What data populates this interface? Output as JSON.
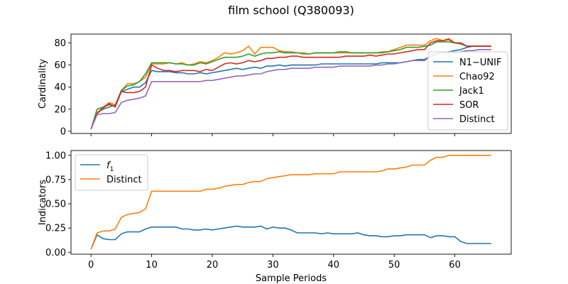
{
  "title": "film school (Q380093)",
  "chart_data": [
    {
      "type": "line",
      "ylabel": "Cardinality",
      "xlim": [
        -3.3,
        69.3
      ],
      "ylim": [
        -2,
        88
      ],
      "yticks": [
        0,
        20,
        40,
        60,
        80
      ],
      "legend_position": "right",
      "x": [
        0,
        1,
        2,
        3,
        4,
        5,
        6,
        7,
        8,
        9,
        10,
        11,
        12,
        13,
        14,
        15,
        16,
        17,
        18,
        19,
        20,
        21,
        22,
        23,
        24,
        25,
        26,
        27,
        28,
        29,
        30,
        31,
        32,
        33,
        34,
        35,
        36,
        37,
        38,
        39,
        40,
        41,
        42,
        43,
        44,
        45,
        46,
        47,
        48,
        49,
        50,
        51,
        52,
        53,
        54,
        55,
        56,
        57,
        58,
        59,
        60,
        61,
        62,
        63,
        64,
        65,
        66
      ],
      "series": [
        {
          "name": "N1−UNIF",
          "color": "#1f77b4",
          "values": [
            2,
            17,
            20,
            22,
            24,
            36,
            38,
            40,
            40,
            44,
            55,
            54,
            54,
            54,
            53,
            53,
            52,
            52,
            53,
            52,
            53,
            54,
            55,
            56,
            57,
            56,
            57,
            58,
            57,
            59,
            59,
            60,
            59,
            60,
            60,
            60,
            60,
            60,
            61,
            61,
            61,
            61,
            61,
            61,
            61,
            61,
            61,
            61,
            62,
            62,
            62,
            62,
            63,
            64,
            65,
            65,
            68,
            70,
            71,
            72,
            73,
            74,
            76,
            77,
            77,
            77,
            77
          ]
        },
        {
          "name": "Chao92",
          "color": "#ff7f0e",
          "values": [
            2,
            17,
            22,
            26,
            24,
            37,
            43,
            43,
            45,
            49,
            61,
            61,
            61,
            62,
            61,
            62,
            60,
            61,
            63,
            62,
            64,
            67,
            71,
            70,
            71,
            73,
            77,
            70,
            76,
            76,
            76,
            73,
            72,
            72,
            71,
            71,
            70,
            71,
            71,
            71,
            71,
            71,
            71,
            71,
            71,
            71,
            71,
            71,
            72,
            72,
            74,
            76,
            78,
            78,
            78,
            78,
            82,
            84,
            82,
            84,
            80,
            79,
            77,
            77,
            77,
            77,
            77
          ]
        },
        {
          "name": "Jack1",
          "color": "#2ca02c",
          "values": [
            2,
            20,
            22,
            24,
            23,
            37,
            41,
            42,
            45,
            52,
            62,
            62,
            62,
            62,
            61,
            61,
            60,
            60,
            62,
            61,
            63,
            65,
            67,
            67,
            67,
            68,
            70,
            68,
            70,
            71,
            71,
            72,
            71,
            71,
            71,
            70,
            70,
            71,
            71,
            71,
            71,
            72,
            72,
            71,
            71,
            71,
            71,
            71,
            71,
            72,
            73,
            74,
            76,
            76,
            76,
            77,
            78,
            81,
            81,
            81,
            80,
            79,
            77,
            77,
            77,
            77,
            77
          ]
        },
        {
          "name": "SOR",
          "color": "#d62728",
          "values": [
            2,
            16,
            21,
            25,
            22,
            36,
            35,
            35,
            36,
            40,
            60,
            57,
            55,
            55,
            54,
            55,
            55,
            55,
            54,
            56,
            55,
            58,
            61,
            62,
            61,
            62,
            64,
            63,
            64,
            66,
            66,
            67,
            67,
            68,
            68,
            67,
            67,
            67,
            67,
            67,
            67,
            67,
            68,
            68,
            68,
            68,
            69,
            68,
            69,
            70,
            70,
            71,
            72,
            73,
            74,
            74,
            80,
            82,
            82,
            83,
            80,
            80,
            77,
            77,
            77,
            77,
            77
          ]
        },
        {
          "name": "Distinct",
          "color": "#9467bd",
          "values": [
            2,
            15,
            16,
            16,
            17,
            26,
            28,
            29,
            30,
            32,
            45,
            45,
            45,
            45,
            45,
            45,
            45,
            45,
            45,
            46,
            46,
            47,
            48,
            49,
            50,
            50,
            51,
            52,
            52,
            54,
            55,
            56,
            56,
            57,
            57,
            57,
            57,
            58,
            58,
            58,
            58,
            59,
            59,
            59,
            59,
            59,
            59,
            60,
            60,
            61,
            61,
            62,
            63,
            64,
            64,
            64,
            68,
            70,
            71,
            71,
            71,
            72,
            73,
            73,
            74,
            74,
            74
          ]
        }
      ]
    },
    {
      "type": "line",
      "ylabel": "Indicators",
      "xlabel": "Sample Periods",
      "xlim": [
        -3.3,
        69.3
      ],
      "ylim": [
        -0.02,
        1.05
      ],
      "xticks": [
        0,
        10,
        20,
        30,
        40,
        50,
        60
      ],
      "yticks": [
        "0.00",
        "0.25",
        "0.50",
        "0.75",
        "1.00"
      ],
      "legend_position": "upper left",
      "x": [
        0,
        1,
        2,
        3,
        4,
        5,
        6,
        7,
        8,
        9,
        10,
        11,
        12,
        13,
        14,
        15,
        16,
        17,
        18,
        19,
        20,
        21,
        22,
        23,
        24,
        25,
        26,
        27,
        28,
        29,
        30,
        31,
        32,
        33,
        34,
        35,
        36,
        37,
        38,
        39,
        40,
        41,
        42,
        43,
        44,
        45,
        46,
        47,
        48,
        49,
        50,
        51,
        52,
        53,
        54,
        55,
        56,
        57,
        58,
        59,
        60,
        61,
        62,
        63,
        64,
        65,
        66
      ],
      "series": [
        {
          "name": "f",
          "subscript": "1",
          "color": "#1f77b4",
          "values": [
            0.03,
            0.18,
            0.14,
            0.13,
            0.13,
            0.19,
            0.21,
            0.21,
            0.21,
            0.24,
            0.26,
            0.26,
            0.26,
            0.26,
            0.26,
            0.24,
            0.24,
            0.23,
            0.23,
            0.24,
            0.23,
            0.24,
            0.25,
            0.26,
            0.27,
            0.26,
            0.26,
            0.26,
            0.27,
            0.24,
            0.26,
            0.25,
            0.25,
            0.23,
            0.2,
            0.2,
            0.2,
            0.2,
            0.19,
            0.2,
            0.19,
            0.19,
            0.19,
            0.19,
            0.2,
            0.18,
            0.17,
            0.17,
            0.16,
            0.16,
            0.17,
            0.17,
            0.18,
            0.18,
            0.18,
            0.18,
            0.15,
            0.17,
            0.17,
            0.16,
            0.16,
            0.11,
            0.09,
            0.09,
            0.09,
            0.09,
            0.09
          ]
        },
        {
          "name": "Distinct",
          "color": "#ff7f0e",
          "values": [
            0.03,
            0.2,
            0.22,
            0.22,
            0.24,
            0.36,
            0.39,
            0.4,
            0.41,
            0.45,
            0.63,
            0.63,
            0.63,
            0.63,
            0.63,
            0.63,
            0.63,
            0.63,
            0.63,
            0.65,
            0.65,
            0.66,
            0.68,
            0.69,
            0.7,
            0.7,
            0.72,
            0.73,
            0.73,
            0.76,
            0.77,
            0.78,
            0.79,
            0.8,
            0.8,
            0.8,
            0.8,
            0.81,
            0.81,
            0.81,
            0.81,
            0.83,
            0.83,
            0.83,
            0.83,
            0.83,
            0.83,
            0.83,
            0.84,
            0.86,
            0.86,
            0.87,
            0.88,
            0.9,
            0.9,
            0.9,
            0.95,
            0.98,
            0.98,
            1.0,
            1.0,
            1.0,
            1.0,
            1.0,
            1.0,
            1.0,
            1.0
          ]
        }
      ]
    }
  ]
}
